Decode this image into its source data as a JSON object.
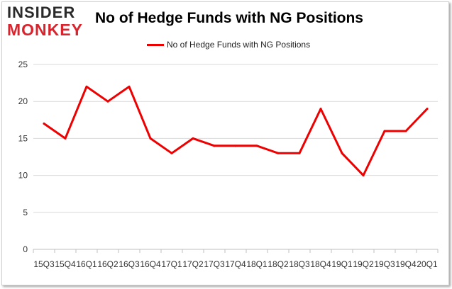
{
  "logo": {
    "line1": "INSIDER",
    "line2": "MONKEY"
  },
  "colors": {
    "series": "#ee0000",
    "grid": "#d9d9d9",
    "logo_red": "#d9232d"
  },
  "chart_data": {
    "type": "line",
    "title": "No of Hedge Funds with NG Positions",
    "xlabel": "",
    "ylabel": "",
    "ylim": [
      0,
      25
    ],
    "yticks": [
      0,
      5,
      10,
      15,
      20,
      25
    ],
    "grid": true,
    "legend_position": "top-center",
    "categories": [
      "15Q3",
      "15Q4",
      "16Q1",
      "16Q2",
      "16Q3",
      "16Q4",
      "17Q1",
      "17Q2",
      "17Q3",
      "17Q4",
      "18Q1",
      "18Q2",
      "18Q3",
      "18Q4",
      "19Q1",
      "19Q2",
      "19Q3",
      "19Q4",
      "20Q1"
    ],
    "series": [
      {
        "name": "No of Hedge Funds with NG Positions",
        "values": [
          17,
          15,
          22,
          20,
          22,
          15,
          13,
          15,
          14,
          14,
          14,
          13,
          13,
          19,
          13,
          10,
          16,
          16,
          19
        ]
      }
    ]
  }
}
